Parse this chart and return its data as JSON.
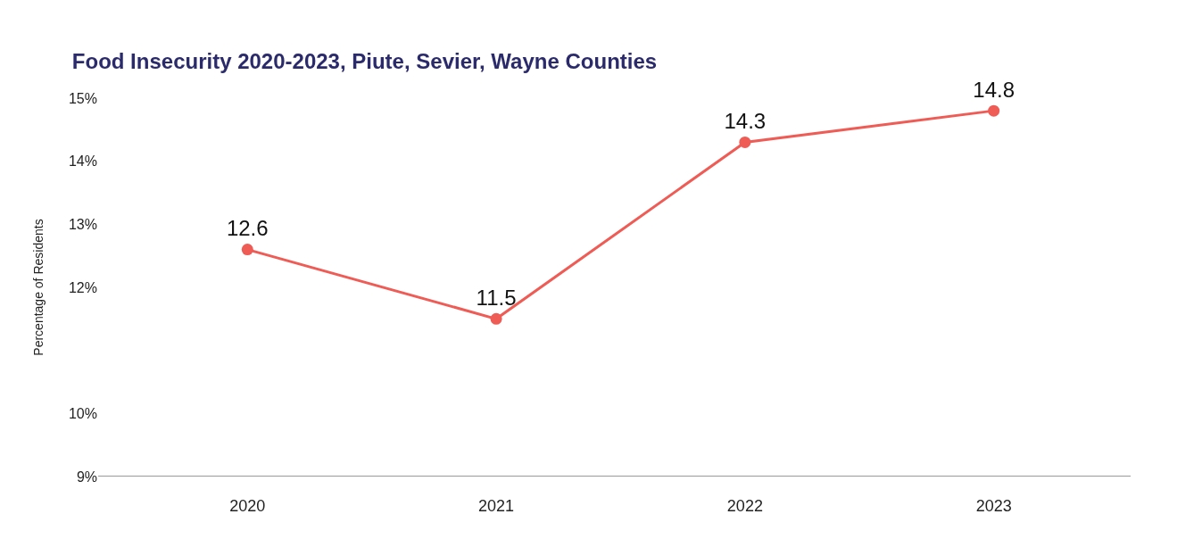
{
  "chart_data": {
    "type": "line",
    "title": "Food Insecurity 2020-2023, Piute, Sevier, Wayne Counties",
    "ylabel": "Percentage of Residents",
    "categories": [
      "2020",
      "2021",
      "2022",
      "2023"
    ],
    "series": [
      {
        "color": "#ef5b55",
        "values": [
          12.6,
          11.5,
          14.3,
          14.8
        ]
      }
    ],
    "ylim": [
      9,
      15
    ],
    "yticks": [
      {
        "value": 9,
        "label": "9%"
      },
      {
        "value": 10,
        "label": "10%"
      },
      {
        "value": 12,
        "label": "12%"
      },
      {
        "value": 13,
        "label": "13%"
      },
      {
        "value": 14,
        "label": "14%"
      },
      {
        "value": 15,
        "label": "15%"
      }
    ],
    "data_labels": true,
    "marker": "circle",
    "line_style": "solid",
    "legend": false
  }
}
